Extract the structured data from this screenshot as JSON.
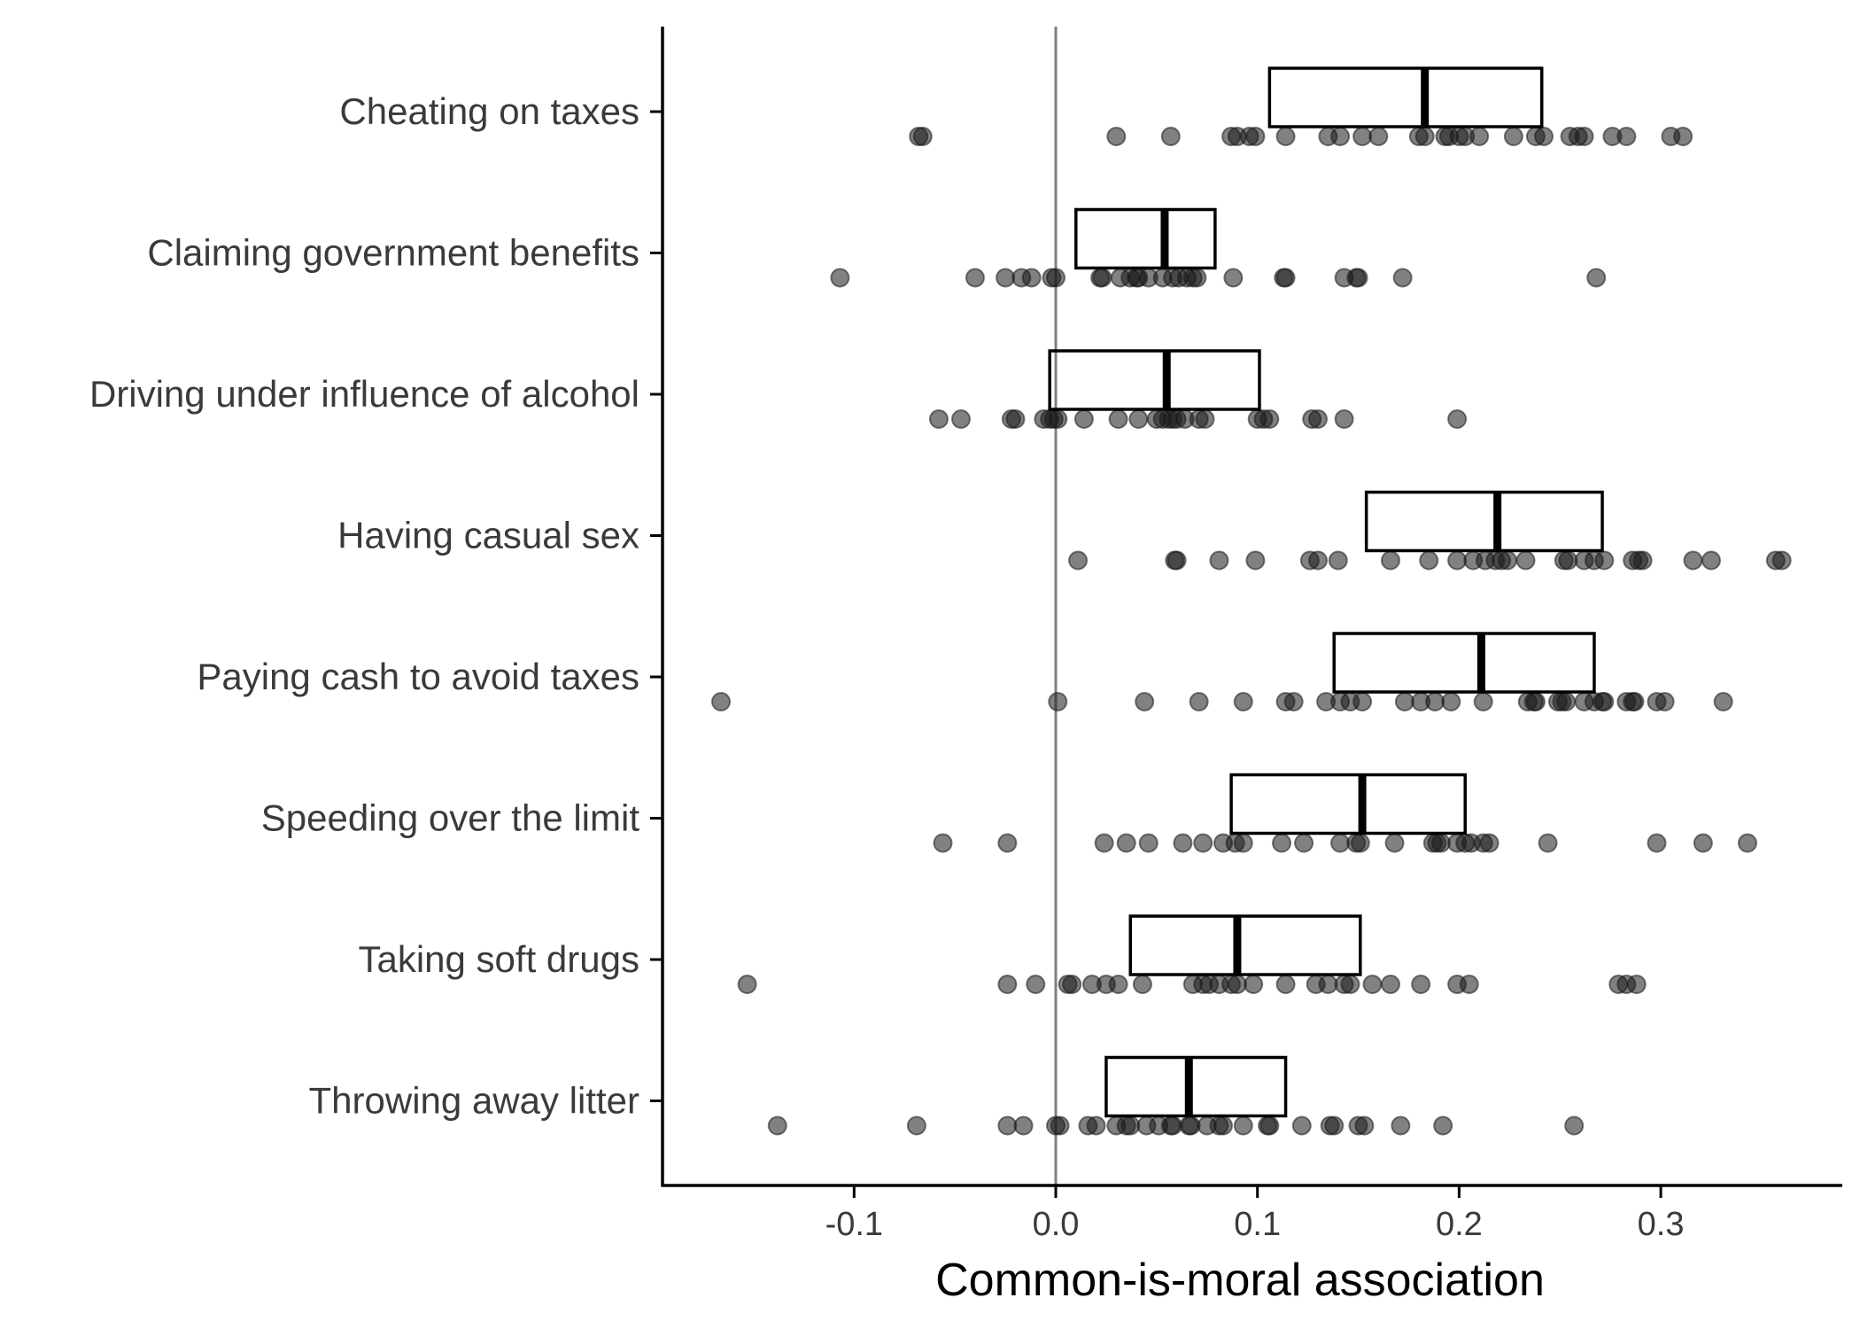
{
  "chart_data": {
    "type": "boxplot",
    "orientation": "horizontal",
    "xlabel": "Common-is-moral association",
    "xlim": [
      -0.195,
      0.39
    ],
    "xticks": [
      -0.1,
      0.0,
      0.1,
      0.2,
      0.3
    ],
    "xtick_labels": [
      "-0.1",
      "0.0",
      "0.1",
      "0.2",
      "0.3"
    ],
    "reference_line_x": 0.0,
    "grid": false,
    "colors": {
      "box": "#000000",
      "point": "#1a1a1a",
      "reference_line": "#808080",
      "axis": "#000000"
    },
    "categories": [
      "Cheating on taxes",
      "Claiming government benefits",
      "Driving under influence of alcohol",
      "Having casual sex",
      "Paying cash to avoid taxes",
      "Speeding over the limit",
      "Taking soft drugs",
      "Throwing away litter"
    ],
    "boxes": [
      {
        "q1": 0.106,
        "median": 0.183,
        "q3": 0.241
      },
      {
        "q1": 0.01,
        "median": 0.054,
        "q3": 0.079
      },
      {
        "q1": -0.003,
        "median": 0.055,
        "q3": 0.101
      },
      {
        "q1": 0.154,
        "median": 0.219,
        "q3": 0.271
      },
      {
        "q1": 0.138,
        "median": 0.211,
        "q3": 0.267
      },
      {
        "q1": 0.087,
        "median": 0.152,
        "q3": 0.203
      },
      {
        "q1": 0.037,
        "median": 0.09,
        "q3": 0.151
      },
      {
        "q1": 0.025,
        "median": 0.066,
        "q3": 0.114
      }
    ],
    "points": [
      [
        -0.068,
        -0.066,
        0.03,
        0.057,
        0.087,
        0.09,
        0.096,
        0.099,
        0.114,
        0.135,
        0.141,
        0.152,
        0.16,
        0.18,
        0.183,
        0.193,
        0.195,
        0.2,
        0.203,
        0.21,
        0.227,
        0.238,
        0.242,
        0.255,
        0.259,
        0.262,
        0.276,
        0.283,
        0.305,
        0.311
      ],
      [
        -0.107,
        -0.04,
        -0.025,
        -0.017,
        -0.012,
        -0.002,
        0.0,
        0.022,
        0.023,
        0.032,
        0.037,
        0.04,
        0.041,
        0.046,
        0.053,
        0.058,
        0.061,
        0.065,
        0.068,
        0.07,
        0.088,
        0.113,
        0.114,
        0.143,
        0.149,
        0.15,
        0.172,
        0.268
      ],
      [
        -0.058,
        -0.047,
        -0.022,
        -0.02,
        -0.006,
        -0.003,
        -0.001,
        0.001,
        0.014,
        0.031,
        0.041,
        0.05,
        0.053,
        0.056,
        0.058,
        0.06,
        0.064,
        0.071,
        0.074,
        0.1,
        0.103,
        0.106,
        0.127,
        0.13,
        0.143,
        0.199
      ],
      [
        0.011,
        0.059,
        0.06,
        0.081,
        0.099,
        0.126,
        0.13,
        0.14,
        0.166,
        0.185,
        0.199,
        0.207,
        0.213,
        0.218,
        0.221,
        0.224,
        0.233,
        0.252,
        0.254,
        0.262,
        0.267,
        0.272,
        0.286,
        0.289,
        0.291,
        0.316,
        0.325,
        0.357,
        0.36
      ],
      [
        -0.166,
        0.001,
        0.044,
        0.071,
        0.093,
        0.114,
        0.118,
        0.134,
        0.141,
        0.146,
        0.152,
        0.173,
        0.181,
        0.188,
        0.196,
        0.212,
        0.234,
        0.237,
        0.238,
        0.249,
        0.251,
        0.253,
        0.262,
        0.267,
        0.271,
        0.272,
        0.283,
        0.286,
        0.287,
        0.298,
        0.302,
        0.331
      ],
      [
        -0.056,
        -0.024,
        0.024,
        0.035,
        0.046,
        0.063,
        0.073,
        0.083,
        0.089,
        0.093,
        0.112,
        0.123,
        0.141,
        0.149,
        0.151,
        0.168,
        0.187,
        0.189,
        0.191,
        0.199,
        0.203,
        0.206,
        0.212,
        0.215,
        0.244,
        0.298,
        0.321,
        0.343
      ],
      [
        -0.153,
        -0.024,
        -0.01,
        0.006,
        0.008,
        0.018,
        0.025,
        0.031,
        0.043,
        0.068,
        0.073,
        0.076,
        0.081,
        0.087,
        0.09,
        0.098,
        0.114,
        0.129,
        0.135,
        0.143,
        0.146,
        0.157,
        0.166,
        0.181,
        0.199,
        0.205,
        0.279,
        0.283,
        0.288
      ],
      [
        -0.138,
        -0.069,
        -0.024,
        -0.016,
        0.0,
        0.002,
        0.016,
        0.02,
        0.03,
        0.035,
        0.037,
        0.045,
        0.051,
        0.057,
        0.058,
        0.066,
        0.067,
        0.075,
        0.081,
        0.083,
        0.093,
        0.105,
        0.106,
        0.122,
        0.136,
        0.138,
        0.15,
        0.153,
        0.171,
        0.192,
        0.257
      ]
    ]
  }
}
